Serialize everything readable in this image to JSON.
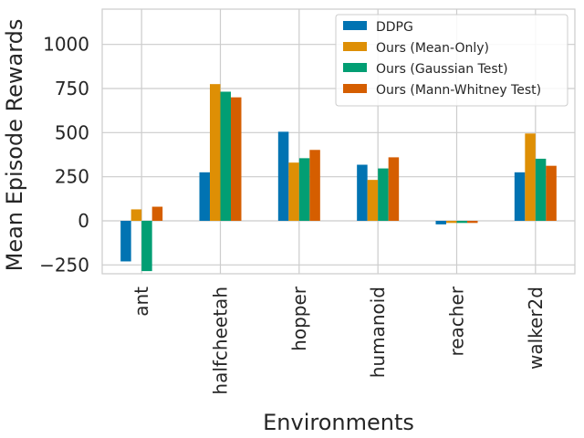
{
  "chart_data": {
    "type": "bar",
    "title": "",
    "xlabel": "Environments",
    "ylabel": "Mean Episode Rewards",
    "categories": [
      "ant",
      "halfcheetah",
      "hopper",
      "humanoid",
      "reacher",
      "walker2d"
    ],
    "series": [
      {
        "name": "DDPG",
        "color": "#0173b2",
        "values": [
          -230,
          275,
          505,
          318,
          -20,
          275
        ]
      },
      {
        "name": "Ours (Mean-Only)",
        "color": "#de8f05",
        "values": [
          65,
          775,
          330,
          232,
          -12,
          495
        ]
      },
      {
        "name": "Ours (Gaussian Test)",
        "color": "#029e73",
        "values": [
          -285,
          732,
          355,
          297,
          -12,
          352
        ]
      },
      {
        "name": "Ours (Mann-Whitney Test)",
        "color": "#d55e00",
        "values": [
          80,
          700,
          402,
          360,
          -12,
          312
        ]
      }
    ],
    "ylim": [
      -300,
      1200
    ],
    "yticks": [
      -250,
      0,
      250,
      500,
      750,
      1000
    ],
    "grid": true,
    "legend_position": "top-right"
  },
  "colors": {
    "grid": "#cccccc",
    "axes_edge": "#cccccc",
    "zero_line": "#cccccc"
  }
}
